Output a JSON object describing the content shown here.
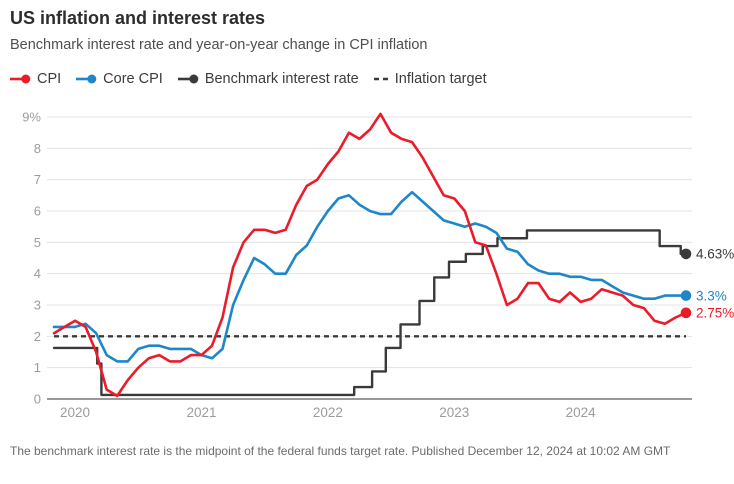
{
  "header": {
    "title": "US inflation and interest rates",
    "subtitle": "Benchmark interest rate and year-on-year change in CPI inflation"
  },
  "legend": {
    "items": [
      {
        "id": "cpi",
        "label": "CPI",
        "color": "#eb1c29",
        "marker": "line-dot"
      },
      {
        "id": "core-cpi",
        "label": "Core CPI",
        "color": "#1e86c9",
        "marker": "line-dot"
      },
      {
        "id": "benchmark",
        "label": "Benchmark interest rate",
        "color": "#3a3a3a",
        "marker": "line-dot"
      },
      {
        "id": "inflation-target",
        "label": "Inflation target",
        "color": "#3a3a3a",
        "marker": "dashed"
      }
    ]
  },
  "footer": {
    "note": "The benchmark interest rate is the midpoint of the federal funds target rate. Published December 12, 2024 at 10:02 AM GMT"
  },
  "colors": {
    "cpi": "#eb1c29",
    "core_cpi": "#1e86c9",
    "benchmark": "#3a3a3a",
    "grid": "#e3e3e3",
    "baseline": "#9a9a9a",
    "axis_text": "#9c9c9c"
  },
  "chart_data": {
    "type": "line",
    "title": "US inflation and interest rates",
    "subtitle": "Benchmark interest rate and year-on-year change in CPI inflation",
    "x_frequency": "monthly",
    "x_range": [
      "2019-11",
      "2024-11"
    ],
    "ylim": [
      0,
      9
    ],
    "grid": true,
    "legend_position": "top",
    "y_ticks": [
      {
        "value": 9,
        "label": "9%"
      },
      {
        "value": 8,
        "label": "8"
      },
      {
        "value": 7,
        "label": "7"
      },
      {
        "value": 6,
        "label": "6"
      },
      {
        "value": 5,
        "label": "5"
      },
      {
        "value": 4,
        "label": "4"
      },
      {
        "value": 3,
        "label": "3"
      },
      {
        "value": 2,
        "label": "2"
      },
      {
        "value": 1,
        "label": "1"
      },
      {
        "value": 0,
        "label": "0"
      }
    ],
    "x_ticks": [
      {
        "month": 2,
        "label": "2020"
      },
      {
        "month": 14,
        "label": "2021"
      },
      {
        "month": 26,
        "label": "2022"
      },
      {
        "month": 38,
        "label": "2023"
      },
      {
        "month": 50,
        "label": "2024"
      }
    ],
    "reference_lines": [
      {
        "id": "inflation-target",
        "name": "Inflation target",
        "value": 2,
        "style": "dashed",
        "color": "#3a3a3a"
      }
    ],
    "series": [
      {
        "id": "benchmark",
        "name": "Benchmark interest rate",
        "color": "#3a3a3a",
        "step": true,
        "width": 2.4,
        "end_label": "4.63%",
        "points": [
          [
            0,
            1.63
          ],
          [
            4.1,
            1.13
          ],
          [
            4.5,
            0.13
          ],
          [
            28.5,
            0.38
          ],
          [
            30.2,
            0.88
          ],
          [
            31.5,
            1.63
          ],
          [
            32.9,
            2.38
          ],
          [
            34.7,
            3.13
          ],
          [
            36.1,
            3.88
          ],
          [
            37.5,
            4.38
          ],
          [
            39.1,
            4.63
          ],
          [
            40.7,
            4.88
          ],
          [
            42.1,
            5.13
          ],
          [
            44.9,
            5.38
          ],
          [
            57.5,
            4.88
          ],
          [
            59.5,
            4.63
          ]
        ]
      },
      {
        "id": "core-cpi",
        "name": "Core CPI",
        "color": "#1e86c9",
        "step": false,
        "width": 2.6,
        "end_label": "3.3%",
        "values": [
          2.3,
          2.3,
          2.3,
          2.4,
          2.1,
          1.4,
          1.2,
          1.2,
          1.6,
          1.7,
          1.7,
          1.6,
          1.6,
          1.6,
          1.4,
          1.3,
          1.6,
          3.0,
          3.8,
          4.5,
          4.3,
          4.0,
          4.0,
          4.6,
          4.9,
          5.5,
          6.0,
          6.4,
          6.5,
          6.2,
          6.0,
          5.9,
          5.9,
          6.3,
          6.6,
          6.3,
          6.0,
          5.7,
          5.6,
          5.5,
          5.6,
          5.5,
          5.3,
          4.8,
          4.7,
          4.3,
          4.1,
          4.0,
          4.0,
          3.9,
          3.9,
          3.8,
          3.8,
          3.6,
          3.4,
          3.3,
          3.2,
          3.2,
          3.3,
          3.3,
          3.3
        ]
      },
      {
        "id": "cpi",
        "name": "CPI",
        "color": "#eb1c29",
        "step": false,
        "width": 2.6,
        "end_label": "2.75%",
        "values": [
          2.1,
          2.3,
          2.5,
          2.3,
          1.5,
          0.3,
          0.1,
          0.6,
          1.0,
          1.3,
          1.4,
          1.2,
          1.2,
          1.4,
          1.4,
          1.7,
          2.6,
          4.2,
          5.0,
          5.4,
          5.4,
          5.3,
          5.4,
          6.2,
          6.8,
          7.0,
          7.5,
          7.9,
          8.5,
          8.3,
          8.6,
          9.1,
          8.5,
          8.3,
          8.2,
          7.7,
          7.1,
          6.5,
          6.4,
          6.0,
          5.0,
          4.9,
          4.0,
          3.0,
          3.2,
          3.7,
          3.7,
          3.2,
          3.1,
          3.4,
          3.1,
          3.2,
          3.5,
          3.4,
          3.3,
          3.0,
          2.9,
          2.5,
          2.4,
          2.6,
          2.75
        ]
      }
    ]
  }
}
